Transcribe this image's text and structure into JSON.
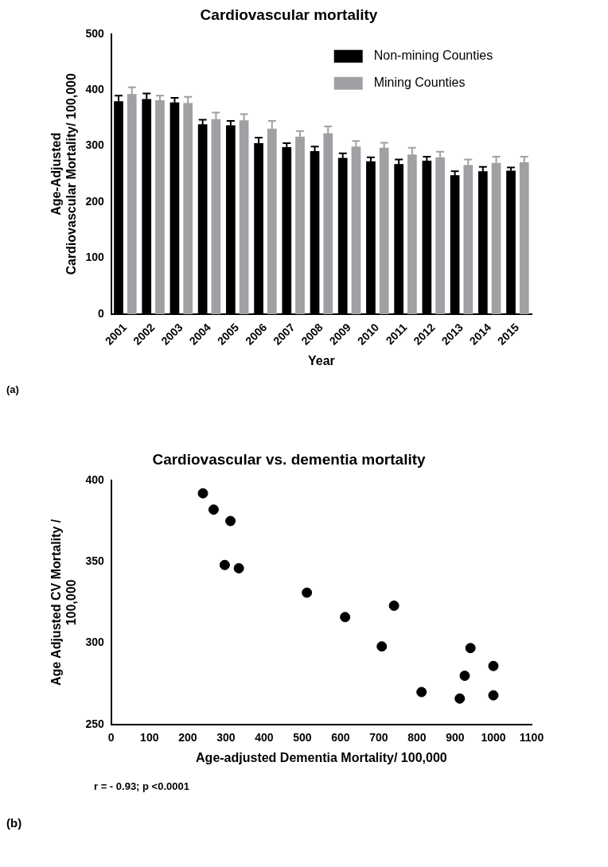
{
  "chart_data": [
    {
      "type": "bar",
      "title": "Cardiovascular mortality",
      "xlabel": "Year",
      "ylabel": "Age-Adjusted\nCardiovascular Mortality/ 100,000",
      "categories": [
        "2001",
        "2002",
        "2003",
        "2004",
        "2005",
        "2006",
        "2007",
        "2008",
        "2009",
        "2010",
        "2011",
        "2012",
        "2013",
        "2014",
        "2015"
      ],
      "series": [
        {
          "name": "Non-mining Counties",
          "color": "#000000",
          "values": [
            380,
            384,
            378,
            339,
            337,
            305,
            298,
            291,
            279,
            273,
            268,
            274,
            248,
            255,
            256
          ],
          "errors": [
            10,
            10,
            8,
            8,
            8,
            10,
            7,
            8,
            8,
            7,
            8,
            7,
            7,
            8,
            6
          ]
        },
        {
          "name": "Mining Counties",
          "color": "#a0a0a4",
          "values": [
            393,
            382,
            377,
            348,
            346,
            331,
            317,
            323,
            299,
            297,
            285,
            280,
            266,
            270,
            271
          ],
          "errors": [
            12,
            8,
            11,
            12,
            11,
            14,
            10,
            12,
            10,
            9,
            12,
            10,
            10,
            11,
            10
          ]
        }
      ],
      "ylim": [
        0,
        500
      ],
      "yticks": [
        0,
        100,
        200,
        300,
        400,
        500
      ],
      "grid": false,
      "legend": "top right",
      "annotations": [
        "(a)"
      ]
    },
    {
      "type": "scatter",
      "title": "Cardiovascular vs. dementia mortality",
      "xlabel": "Age-adjusted Dementia Mortality/ 100,000",
      "ylabel": "Age Adjusted CV Mortality /\n100,000",
      "series": [
        {
          "color": "#000000",
          "x": [
            240,
            268,
            312,
            297,
            334,
            512,
            612,
            740,
            708,
            940,
            1000,
            925,
            812,
            1000,
            912
          ],
          "values": [
            392,
            382,
            375,
            348,
            346,
            331,
            316,
            323,
            298,
            297,
            286,
            280,
            270,
            268,
            266
          ]
        }
      ],
      "xlim": [
        0,
        1100
      ],
      "xticks": [
        0,
        100,
        200,
        300,
        400,
        500,
        600,
        700,
        800,
        900,
        1000,
        1100
      ],
      "ylim": [
        250,
        400
      ],
      "yticks": [
        250,
        300,
        350,
        400
      ],
      "grid": false,
      "legend": false,
      "marker": "circle",
      "annotations": [
        "r = - 0.93; p <0.0001",
        "(b)"
      ]
    }
  ]
}
